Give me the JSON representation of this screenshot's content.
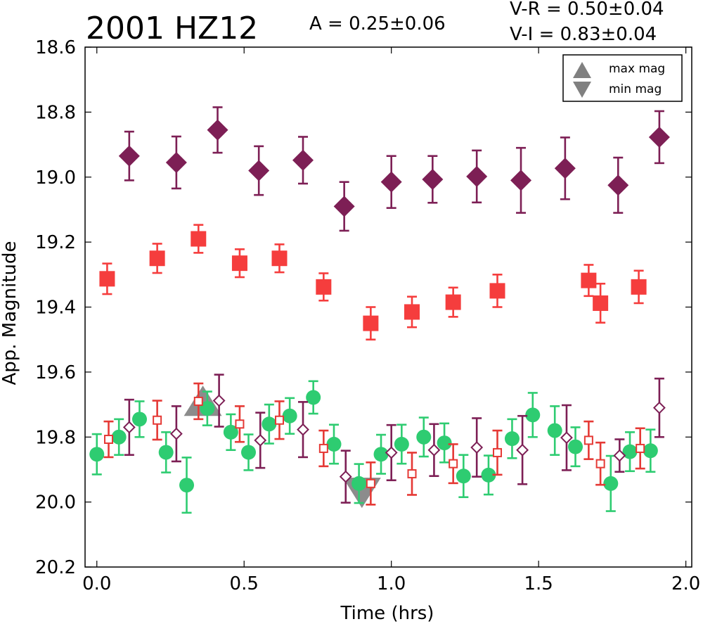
{
  "chart_data": {
    "type": "scatter",
    "title": "2001 HZ12",
    "annotations": {
      "amplitude": "A  = 0.25±0.06",
      "vr": "V-R = 0.50±0.04",
      "vi": "V-I  = 0.83±0.04"
    },
    "xlabel": "Time (hrs)",
    "ylabel": "App. Magnitude",
    "xlim": [
      -0.04,
      2.02
    ],
    "ylim": [
      20.2,
      18.6
    ],
    "y_inverted": true,
    "xticks": [
      "0.0",
      "0.5",
      "1.0",
      "1.5",
      "2.0"
    ],
    "yticks": [
      "18.6",
      "18.8",
      "19.0",
      "19.2",
      "19.4",
      "19.6",
      "19.8",
      "20.0",
      "20.2"
    ],
    "grid": false,
    "legend": {
      "placement": "top-right",
      "entries": [
        {
          "label": "max mag",
          "marker": "triangle-up",
          "color": "#808080"
        },
        {
          "label": "min mag",
          "marker": "triangle-down",
          "color": "#808080"
        }
      ]
    },
    "series": [
      {
        "marker": "filled-diamond",
        "color": "#7d1f55",
        "points": [
          {
            "x": 0.11,
            "y": 18.935,
            "err": 0.075
          },
          {
            "x": 0.27,
            "y": 18.955,
            "err": 0.08
          },
          {
            "x": 0.41,
            "y": 18.855,
            "err": 0.07
          },
          {
            "x": 0.55,
            "y": 18.98,
            "err": 0.075
          },
          {
            "x": 0.7,
            "y": 18.948,
            "err": 0.072
          },
          {
            "x": 0.84,
            "y": 19.09,
            "err": 0.075
          },
          {
            "x": 1.0,
            "y": 19.015,
            "err": 0.08
          },
          {
            "x": 1.14,
            "y": 19.007,
            "err": 0.072
          },
          {
            "x": 1.29,
            "y": 18.998,
            "err": 0.08
          },
          {
            "x": 1.44,
            "y": 19.01,
            "err": 0.1
          },
          {
            "x": 1.59,
            "y": 18.973,
            "err": 0.095
          },
          {
            "x": 1.77,
            "y": 19.025,
            "err": 0.085
          },
          {
            "x": 1.91,
            "y": 18.877,
            "err": 0.08
          }
        ]
      },
      {
        "marker": "filled-square",
        "color": "#f53d3d",
        "points": [
          {
            "x": 0.035,
            "y": 19.313,
            "err": 0.047
          },
          {
            "x": 0.205,
            "y": 19.25,
            "err": 0.045
          },
          {
            "x": 0.345,
            "y": 19.19,
            "err": 0.043
          },
          {
            "x": 0.485,
            "y": 19.265,
            "err": 0.043
          },
          {
            "x": 0.62,
            "y": 19.25,
            "err": 0.043
          },
          {
            "x": 0.77,
            "y": 19.338,
            "err": 0.042
          },
          {
            "x": 0.93,
            "y": 19.45,
            "err": 0.05
          },
          {
            "x": 1.07,
            "y": 19.415,
            "err": 0.047
          },
          {
            "x": 1.21,
            "y": 19.385,
            "err": 0.045
          },
          {
            "x": 1.36,
            "y": 19.35,
            "err": 0.05
          },
          {
            "x": 1.67,
            "y": 19.318,
            "err": 0.048
          },
          {
            "x": 1.71,
            "y": 19.388,
            "err": 0.06
          },
          {
            "x": 1.84,
            "y": 19.338,
            "err": 0.05
          }
        ]
      },
      {
        "marker": "filled-circle",
        "color": "#2ecc71",
        "points": [
          {
            "x": 0.0,
            "y": 19.853,
            "err": 0.062
          },
          {
            "x": 0.075,
            "y": 19.8,
            "err": 0.055
          },
          {
            "x": 0.145,
            "y": 19.745,
            "err": 0.055
          },
          {
            "x": 0.235,
            "y": 19.847,
            "err": 0.062
          },
          {
            "x": 0.305,
            "y": 19.948,
            "err": 0.085
          },
          {
            "x": 0.375,
            "y": 19.712,
            "err": 0.052
          },
          {
            "x": 0.455,
            "y": 19.785,
            "err": 0.055
          },
          {
            "x": 0.515,
            "y": 19.847,
            "err": 0.055
          },
          {
            "x": 0.585,
            "y": 19.76,
            "err": 0.06
          },
          {
            "x": 0.655,
            "y": 19.735,
            "err": 0.055
          },
          {
            "x": 0.735,
            "y": 19.678,
            "err": 0.05
          },
          {
            "x": 0.805,
            "y": 19.822,
            "err": 0.06
          },
          {
            "x": 0.89,
            "y": 19.943,
            "err": 0.06
          },
          {
            "x": 0.965,
            "y": 19.853,
            "err": 0.06
          },
          {
            "x": 1.035,
            "y": 19.822,
            "err": 0.06
          },
          {
            "x": 1.11,
            "y": 19.8,
            "err": 0.06
          },
          {
            "x": 1.18,
            "y": 19.818,
            "err": 0.06
          },
          {
            "x": 1.245,
            "y": 19.92,
            "err": 0.065
          },
          {
            "x": 1.33,
            "y": 19.917,
            "err": 0.06
          },
          {
            "x": 1.41,
            "y": 19.805,
            "err": 0.06
          },
          {
            "x": 1.48,
            "y": 19.732,
            "err": 0.068
          },
          {
            "x": 1.555,
            "y": 19.78,
            "err": 0.075
          },
          {
            "x": 1.625,
            "y": 19.83,
            "err": 0.06
          },
          {
            "x": 1.745,
            "y": 19.943,
            "err": 0.085
          },
          {
            "x": 1.81,
            "y": 19.845,
            "err": 0.06
          },
          {
            "x": 1.88,
            "y": 19.842,
            "err": 0.065
          }
        ]
      },
      {
        "marker": "open-square",
        "color": "#e53935",
        "points": [
          {
            "x": 0.04,
            "y": 19.807,
            "err": 0.055
          },
          {
            "x": 0.205,
            "y": 19.748,
            "err": 0.06
          },
          {
            "x": 0.345,
            "y": 19.69,
            "err": 0.055
          },
          {
            "x": 0.485,
            "y": 19.76,
            "err": 0.055
          },
          {
            "x": 0.62,
            "y": 19.748,
            "err": 0.058
          },
          {
            "x": 0.77,
            "y": 19.835,
            "err": 0.055
          },
          {
            "x": 0.93,
            "y": 19.943,
            "err": 0.065
          },
          {
            "x": 1.07,
            "y": 19.913,
            "err": 0.065
          },
          {
            "x": 1.21,
            "y": 19.882,
            "err": 0.06
          },
          {
            "x": 1.36,
            "y": 19.848,
            "err": 0.068
          },
          {
            "x": 1.67,
            "y": 19.81,
            "err": 0.058
          },
          {
            "x": 1.71,
            "y": 19.882,
            "err": 0.065
          },
          {
            "x": 1.845,
            "y": 19.835,
            "err": 0.062
          }
        ]
      },
      {
        "marker": "open-diamond",
        "color": "#7d1f55",
        "points": [
          {
            "x": 0.11,
            "y": 19.77,
            "err": 0.085
          },
          {
            "x": 0.27,
            "y": 19.79,
            "err": 0.085
          },
          {
            "x": 0.415,
            "y": 19.688,
            "err": 0.08
          },
          {
            "x": 0.555,
            "y": 19.81,
            "err": 0.085
          },
          {
            "x": 0.7,
            "y": 19.777,
            "err": 0.085
          },
          {
            "x": 0.845,
            "y": 19.922,
            "err": 0.08
          },
          {
            "x": 1.0,
            "y": 19.848,
            "err": 0.085
          },
          {
            "x": 1.145,
            "y": 19.84,
            "err": 0.08
          },
          {
            "x": 1.29,
            "y": 19.832,
            "err": 0.09
          },
          {
            "x": 1.445,
            "y": 19.84,
            "err": 0.105
          },
          {
            "x": 1.595,
            "y": 19.802,
            "err": 0.1
          },
          {
            "x": 1.775,
            "y": 19.857,
            "err": 0.05
          },
          {
            "x": 1.91,
            "y": 19.71,
            "err": 0.09
          }
        ]
      }
    ],
    "markers_max_min": [
      {
        "label": "max mag",
        "x": 0.36,
        "y": 19.7,
        "marker": "triangle-up",
        "color": "#808080"
      },
      {
        "label": "min mag",
        "x": 0.9,
        "y": 19.96,
        "marker": "triangle-down",
        "color": "#808080"
      }
    ]
  }
}
